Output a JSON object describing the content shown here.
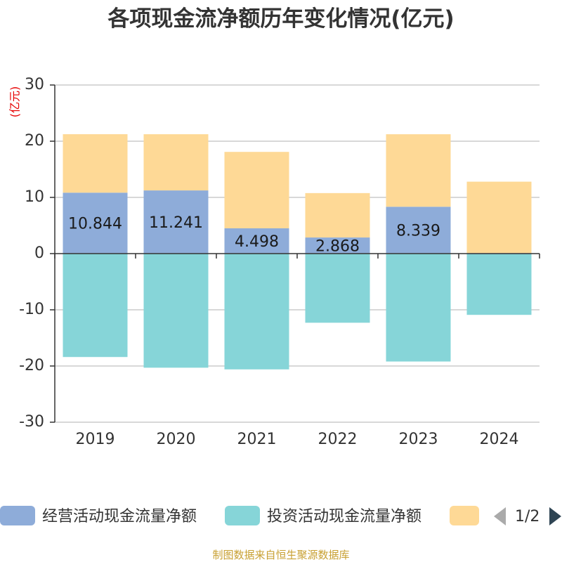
{
  "chart_data": {
    "type": "bar",
    "stacked": true,
    "title": "各项现金流净额历年变化情况(亿元)",
    "ylabel": "(亿元)",
    "ylim": [
      -30,
      30
    ],
    "yticks": [
      30,
      20,
      10,
      0,
      -10,
      -20,
      -30
    ],
    "categories": [
      "2019",
      "2020",
      "2021",
      "2022",
      "2023",
      "2024"
    ],
    "series": [
      {
        "name": "经营活动现金流量净额",
        "color": "#8eacd9",
        "values": [
          10.844,
          11.241,
          4.498,
          2.868,
          8.339,
          0.1
        ],
        "labels": [
          "10.844",
          "11.241",
          "4.498",
          "2.868",
          "8.339",
          ""
        ]
      },
      {
        "name": "投资活动现金流量净额",
        "color": "#86d5d8",
        "values": [
          -18.4,
          -20.3,
          -20.6,
          -12.3,
          -19.2,
          -10.9
        ],
        "labels": []
      },
      {
        "name": "",
        "color": "#fed996",
        "values": [
          10.4,
          10.0,
          13.6,
          7.9,
          12.9,
          12.7
        ],
        "labels": []
      }
    ],
    "legend_position": "bottom"
  },
  "legend": {
    "page": "1/2"
  },
  "source": "制图数据来自恒生聚源数据库"
}
